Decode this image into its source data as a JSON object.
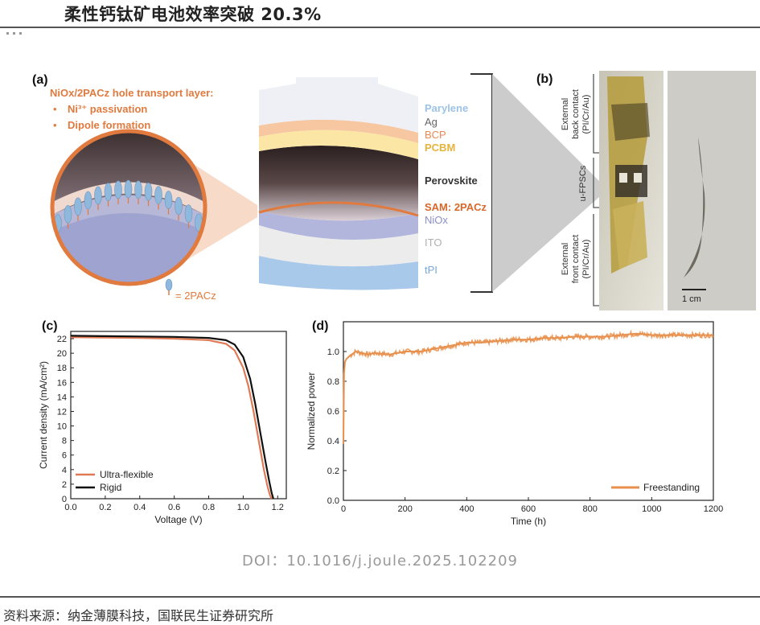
{
  "header": {
    "title": "柔性钙钛矿电池效率突破 20.3%"
  },
  "panel_a": {
    "label": "(a)",
    "htl_title": "NiOx/2PACz hole transport layer:",
    "htl_points": [
      "Ni³⁺ passivation",
      "Dipole formation"
    ],
    "legend_label": "= 2PACz",
    "layers": [
      "Parylene",
      "Ag",
      "BCP",
      "PCBM",
      "Perovskite",
      "SAM: 2PACz",
      "NiOx",
      "ITO",
      "tPI"
    ],
    "colors": {
      "parylene": "#a9c8e8",
      "ag": "#888888",
      "bcp": "#e9894f",
      "pcbm": "#e6b43c",
      "perovskite": "#333333",
      "sam": "#d9692b",
      "niox": "#8a8fc7",
      "ito": "#b0b0b0",
      "tpi": "#7aa8d8"
    }
  },
  "panel_b": {
    "label": "(b)",
    "labels": [
      "External back contact (PI/Cr/Au)",
      "u-FPSCs",
      "External front contact (PI/Cr/Au)"
    ],
    "back_contact": [
      "External",
      "back contact",
      "(PI/Cr/Au)"
    ],
    "cells": "u-FPSCs",
    "front_contact": [
      "External",
      "front contact",
      "(PI/Cr/Au)"
    ],
    "scale_bar": "1 cm"
  },
  "panel_c": {
    "label": "(c)",
    "chart_data": {
      "type": "line",
      "xlabel": "Voltage (V)",
      "ylabel": "Current density (mA/cm²)",
      "xlim": [
        0.0,
        1.25
      ],
      "ylim": [
        0,
        23
      ],
      "xticks": [
        "0.0",
        "0.2",
        "0.4",
        "0.6",
        "0.8",
        "1.0",
        "1.2"
      ],
      "yticks": [
        "0",
        "2",
        "4",
        "6",
        "8",
        "10",
        "12",
        "14",
        "16",
        "18",
        "20",
        "22"
      ],
      "legend_position": "bottom-left",
      "series": [
        {
          "name": "Ultra-flexible",
          "color": "#e07a55",
          "x": [
            0,
            0.2,
            0.4,
            0.6,
            0.8,
            0.9,
            0.95,
            1.0,
            1.03,
            1.06,
            1.09,
            1.12,
            1.14,
            1.155,
            1.165
          ],
          "y": [
            22.2,
            22.15,
            22.1,
            22.0,
            21.8,
            21.3,
            20.4,
            18.0,
            15.5,
            12.0,
            8.0,
            4.0,
            1.8,
            0.5,
            0
          ]
        },
        {
          "name": "Rigid",
          "color": "#111111",
          "x": [
            0,
            0.2,
            0.4,
            0.6,
            0.8,
            0.9,
            0.95,
            1.0,
            1.04,
            1.07,
            1.1,
            1.13,
            1.15,
            1.165,
            1.175
          ],
          "y": [
            22.4,
            22.35,
            22.3,
            22.25,
            22.1,
            21.8,
            21.2,
            19.5,
            16.5,
            13.0,
            9.0,
            5.0,
            2.5,
            0.8,
            0
          ]
        }
      ]
    }
  },
  "panel_d": {
    "label": "(d)",
    "chart_data": {
      "type": "line",
      "xlabel": "Time (h)",
      "ylabel": "Normalized power",
      "xlim": [
        0,
        1200
      ],
      "ylim": [
        0.0,
        1.2
      ],
      "xticks": [
        "0",
        "200",
        "400",
        "600",
        "800",
        "1000",
        "1200"
      ],
      "yticks": [
        "0.0",
        "0.2",
        "0.4",
        "0.6",
        "0.8",
        "1.0"
      ],
      "legend_position": "bottom-right",
      "series": [
        {
          "name": "Freestanding",
          "color": "#e8914f",
          "x": [
            0,
            2,
            5,
            10,
            20,
            40,
            60,
            80,
            100,
            150,
            200,
            250,
            300,
            350,
            400,
            450,
            500,
            550,
            600,
            650,
            700,
            750,
            800,
            850,
            900,
            950,
            1000,
            1050,
            1100,
            1150,
            1200
          ],
          "y": [
            0.38,
            0.85,
            0.93,
            0.95,
            0.97,
            1.0,
            0.99,
            0.98,
            0.99,
            0.98,
            1.0,
            1.0,
            1.02,
            1.04,
            1.06,
            1.06,
            1.07,
            1.08,
            1.08,
            1.09,
            1.09,
            1.1,
            1.1,
            1.1,
            1.11,
            1.12,
            1.11,
            1.11,
            1.11,
            1.11,
            1.11
          ]
        }
      ]
    }
  },
  "doi": "DOI：10.1016/j.joule.2025.102209",
  "source": "资料来源：纳金薄膜科技，国联民生证券研究所"
}
